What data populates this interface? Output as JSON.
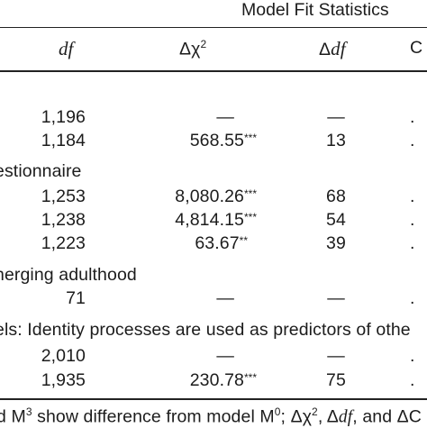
{
  "header": {
    "group_title": "Model Fit Statistics",
    "col_df": "df",
    "col_dchi_prefix": "Δχ",
    "col_dchi_sup": "2",
    "col_ddf": "Δdf",
    "col_cut": "C"
  },
  "rows": [
    {
      "df": "1,196",
      "dchi": "—",
      "stars": "",
      "ddf": "—",
      "cut": "."
    },
    {
      "df": "1,184",
      "dchi": "568.55",
      "stars": "***",
      "ddf": "13",
      "cut": "."
    },
    {
      "df": "1,253",
      "dchi": "8,080.26",
      "stars": "***",
      "ddf": "68",
      "cut": "."
    },
    {
      "df": "1,238",
      "dchi": "4,814.15",
      "stars": "***",
      "ddf": "54",
      "cut": "."
    },
    {
      "df": "1,223",
      "dchi": "63.67",
      "stars": "**",
      "ddf": "39",
      "cut": "."
    },
    {
      "df": "71",
      "dchi": "—",
      "stars": "",
      "ddf": "—",
      "cut": "."
    },
    {
      "df": "2,010",
      "dchi": "—",
      "stars": "",
      "ddf": "—",
      "cut": "."
    },
    {
      "df": "1,935",
      "dchi": "230.78",
      "stars": "***",
      "ddf": "75",
      "cut": "."
    }
  ],
  "sections": {
    "questionnaire": "estionnaire",
    "emerging": "nerging adulthood",
    "identity": "els: Identity processes are used as predictors of othe"
  },
  "footnote": {
    "p1": "d M",
    "sup1": "3",
    "p2": " show difference from model M",
    "sup2": "0",
    "p3": "; Δχ",
    "sup3": "2",
    "p4": ", Δ",
    "p4i": "df",
    "p5": ", and ΔC"
  }
}
